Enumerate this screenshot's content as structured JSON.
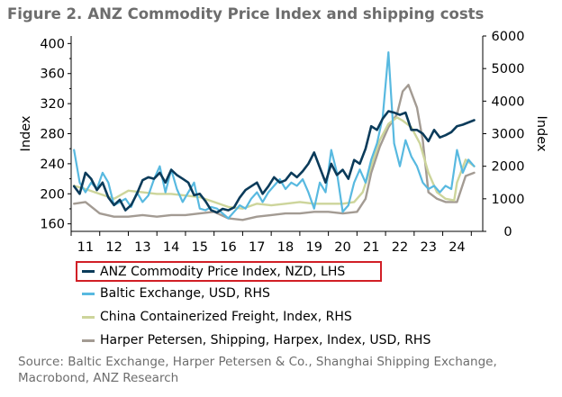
{
  "figure": {
    "label": "Figure 2.",
    "title": "ANZ Commodity Price Index and shipping costs",
    "source": "Source: Baltic Exchange, Harper Petersen & Co., Shanghai Shipping Exchange, Macrobond, ANZ Research"
  },
  "chart_data": {
    "type": "line",
    "title": "ANZ Commodity Price Index and shipping costs",
    "xlabel": "",
    "ylabel": "Index",
    "y2label": "Index",
    "xlim": [
      2010.5,
      2024.9
    ],
    "ylim": [
      150,
      410
    ],
    "y2lim": [
      0,
      6000
    ],
    "x_ticks": [
      2011,
      2012,
      2013,
      2014,
      2015,
      2016,
      2017,
      2018,
      2019,
      2020,
      2021,
      2022,
      2023,
      2024
    ],
    "x_tick_labels": [
      "11",
      "12",
      "13",
      "14",
      "15",
      "16",
      "17",
      "18",
      "19",
      "20",
      "21",
      "22",
      "23",
      "24"
    ],
    "y_ticks": [
      160,
      200,
      240,
      280,
      320,
      360,
      400
    ],
    "y2_ticks": [
      0,
      1000,
      2000,
      3000,
      4000,
      5000,
      6000
    ],
    "grid": false,
    "legend_position": "bottom",
    "series": [
      {
        "name": "ANZ Commodity Price Index, NZD, LHS",
        "axis": "left",
        "color": "#0b3b5a",
        "x": [
          2010.6,
          2010.8,
          2011.0,
          2011.2,
          2011.4,
          2011.6,
          2011.8,
          2012.0,
          2012.2,
          2012.4,
          2012.6,
          2012.8,
          2013.0,
          2013.2,
          2013.4,
          2013.6,
          2013.8,
          2014.0,
          2014.2,
          2014.4,
          2014.6,
          2014.8,
          2015.0,
          2015.2,
          2015.4,
          2015.6,
          2015.8,
          2016.0,
          2016.2,
          2016.4,
          2016.6,
          2016.8,
          2017.0,
          2017.2,
          2017.4,
          2017.6,
          2017.8,
          2018.0,
          2018.2,
          2018.4,
          2018.6,
          2018.8,
          2019.0,
          2019.2,
          2019.4,
          2019.6,
          2019.8,
          2020.0,
          2020.2,
          2020.4,
          2020.6,
          2020.8,
          2021.0,
          2021.2,
          2021.4,
          2021.6,
          2021.8,
          2022.0,
          2022.2,
          2022.4,
          2022.6,
          2022.8,
          2023.0,
          2023.2,
          2023.4,
          2023.6,
          2023.8,
          2024.0,
          2024.2,
          2024.4,
          2024.6
        ],
        "values": [
          210,
          200,
          228,
          220,
          205,
          215,
          195,
          185,
          192,
          178,
          185,
          200,
          218,
          222,
          220,
          228,
          215,
          232,
          225,
          220,
          215,
          198,
          200,
          190,
          178,
          175,
          180,
          178,
          182,
          195,
          205,
          210,
          215,
          200,
          210,
          222,
          215,
          218,
          228,
          222,
          230,
          240,
          255,
          235,
          215,
          240,
          225,
          232,
          220,
          245,
          240,
          260,
          290,
          285,
          300,
          310,
          308,
          305,
          308,
          285,
          285,
          280,
          270,
          285,
          275,
          278,
          282,
          290,
          292,
          295,
          298
        ]
      },
      {
        "name": "Baltic Exchange, USD, RHS",
        "axis": "right",
        "color": "#58b9e0",
        "x": [
          2010.6,
          2010.8,
          2011.0,
          2011.2,
          2011.4,
          2011.6,
          2011.8,
          2012.0,
          2012.2,
          2012.4,
          2012.6,
          2012.8,
          2013.0,
          2013.2,
          2013.4,
          2013.6,
          2013.8,
          2014.0,
          2014.2,
          2014.4,
          2014.6,
          2014.8,
          2015.0,
          2015.2,
          2015.4,
          2015.6,
          2015.8,
          2016.0,
          2016.2,
          2016.4,
          2016.6,
          2016.8,
          2017.0,
          2017.2,
          2017.4,
          2017.6,
          2017.8,
          2018.0,
          2018.2,
          2018.4,
          2018.6,
          2018.8,
          2019.0,
          2019.2,
          2019.4,
          2019.6,
          2019.8,
          2020.0,
          2020.2,
          2020.4,
          2020.6,
          2020.8,
          2021.0,
          2021.2,
          2021.4,
          2021.6,
          2021.8,
          2022.0,
          2022.2,
          2022.4,
          2022.6,
          2022.8,
          2023.0,
          2023.2,
          2023.4,
          2023.6,
          2023.8,
          2024.0,
          2024.2,
          2024.4,
          2024.6
        ],
        "values": [
          2500,
          1500,
          1200,
          1500,
          1300,
          1800,
          1500,
          800,
          900,
          1000,
          750,
          1200,
          900,
          1100,
          1600,
          2000,
          1200,
          1900,
          1300,
          900,
          1200,
          1500,
          700,
          650,
          750,
          700,
          550,
          400,
          600,
          800,
          700,
          1000,
          1200,
          900,
          1200,
          1400,
          1600,
          1300,
          1500,
          1400,
          1600,
          1200,
          700,
          1500,
          1200,
          2500,
          1800,
          600,
          800,
          1500,
          1900,
          1500,
          2200,
          2700,
          3500,
          5500,
          2700,
          2000,
          2800,
          2300,
          2000,
          1500,
          1300,
          1400,
          1200,
          1400,
          1300,
          2500,
          1800,
          2200,
          2000
        ]
      },
      {
        "name": "China Containerized Freight, Index, RHS",
        "axis": "right",
        "color": "#cdd59b",
        "x": [
          2010.6,
          2011.0,
          2011.5,
          2012.0,
          2012.5,
          2013.0,
          2013.5,
          2014.0,
          2014.5,
          2015.0,
          2015.5,
          2016.0,
          2016.5,
          2017.0,
          2017.5,
          2018.0,
          2018.5,
          2019.0,
          2019.5,
          2020.0,
          2020.4,
          2020.7,
          2021.0,
          2021.3,
          2021.6,
          2021.9,
          2022.1,
          2022.4,
          2022.7,
          2023.0,
          2023.3,
          2023.6,
          2023.9,
          2024.0,
          2024.3,
          2024.6
        ],
        "values": [
          1400,
          1300,
          1150,
          1000,
          1250,
          1200,
          1150,
          1150,
          1100,
          1050,
          900,
          750,
          700,
          850,
          800,
          850,
          900,
          850,
          850,
          850,
          900,
          1200,
          2000,
          2800,
          3300,
          3500,
          3400,
          3200,
          2700,
          1800,
          1200,
          1000,
          950,
          1500,
          2200,
          2000
        ]
      },
      {
        "name": "Harper Petersen, Shipping, Harpex, Index, USD, RHS",
        "axis": "right",
        "color": "#a39b93",
        "x": [
          2010.6,
          2011.0,
          2011.5,
          2012.0,
          2012.5,
          2013.0,
          2013.5,
          2014.0,
          2014.5,
          2015.0,
          2015.5,
          2016.0,
          2016.5,
          2017.0,
          2017.5,
          2018.0,
          2018.5,
          2019.0,
          2019.5,
          2020.0,
          2020.5,
          2020.8,
          2021.0,
          2021.3,
          2021.6,
          2021.9,
          2022.1,
          2022.3,
          2022.6,
          2022.8,
          2023.0,
          2023.3,
          2023.6,
          2024.0,
          2024.3,
          2024.6
        ],
        "values": [
          850,
          900,
          550,
          450,
          450,
          500,
          450,
          500,
          500,
          550,
          600,
          400,
          350,
          450,
          500,
          550,
          550,
          600,
          600,
          550,
          600,
          1000,
          1800,
          2600,
          3200,
          3600,
          4300,
          4500,
          3800,
          2800,
          1200,
          1000,
          900,
          900,
          1700,
          1800
        ]
      }
    ]
  }
}
